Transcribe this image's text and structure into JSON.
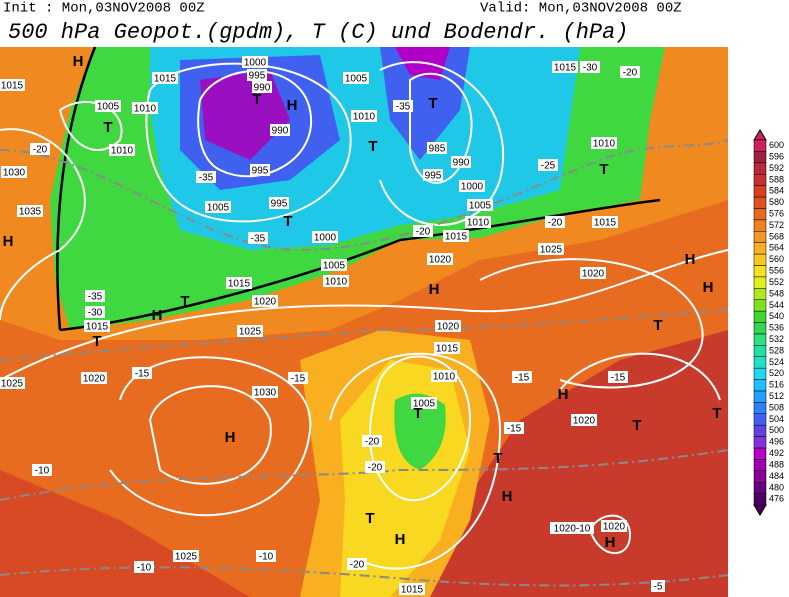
{
  "header": {
    "init": "Init : Mon,03NOV2008 00Z",
    "valid": "Valid: Mon,03NOV2008 00Z",
    "title": "500 hPa Geopot.(gpdm), T (C) und Bodendr. (hPa)"
  },
  "colorbar": {
    "levels": [
      476,
      480,
      484,
      488,
      492,
      496,
      500,
      504,
      508,
      512,
      516,
      520,
      524,
      528,
      532,
      536,
      540,
      544,
      548,
      552,
      556,
      560,
      564,
      568,
      572,
      576,
      580,
      584,
      588,
      592,
      596,
      600
    ],
    "colors": [
      "#4b0060",
      "#6a007f",
      "#8a0099",
      "#a000b0",
      "#b400c8",
      "#8a30d8",
      "#6040e0",
      "#4060f0",
      "#3080f8",
      "#20a0ff",
      "#20c0ff",
      "#20d8f0",
      "#20e0c8",
      "#20e0a0",
      "#30e080",
      "#30d850",
      "#40d830",
      "#80e020",
      "#b0e820",
      "#e0f020",
      "#f8e020",
      "#f8c820",
      "#f8b020",
      "#f09820",
      "#f08020",
      "#e86820",
      "#e05020",
      "#d84020",
      "#c83030",
      "#b82838",
      "#a02040",
      "#d02060"
    ]
  },
  "labels": [
    "H",
    "1015",
    "1005",
    "T",
    "1010",
    "1010",
    "1015",
    "-20",
    "1030",
    "1035",
    "H",
    "-35",
    "-30",
    "1015",
    "T",
    "T",
    "H",
    "1000",
    "995",
    "990",
    "T",
    "H",
    "990",
    "-35",
    "995",
    "1005",
    "995",
    "T",
    "-35",
    "1000",
    "1005",
    "1010",
    "1015",
    "1020",
    "1025",
    "1005",
    "1010",
    "T",
    "-35",
    "T",
    "985",
    "990",
    "995",
    "1000",
    "1005",
    "1010",
    "1015",
    "-20",
    "1020",
    "H",
    "1025",
    "1020",
    "1015",
    "-30",
    "-20",
    "1010",
    "T",
    "-25",
    "-20",
    "1015",
    "H",
    "H",
    "T",
    "1020",
    "1015",
    "1010",
    "1005",
    "T",
    "-15",
    "H",
    "1020",
    "T",
    "T",
    "-15",
    "T",
    "H",
    "1030",
    "H",
    "-15",
    "-15",
    "1020",
    "1025",
    "-10",
    "1025",
    "-10",
    "-10",
    "-20",
    "T",
    "H",
    "1015",
    "1020-10",
    "1020",
    "H",
    "-5",
    "-20",
    "-20",
    "-15"
  ]
}
